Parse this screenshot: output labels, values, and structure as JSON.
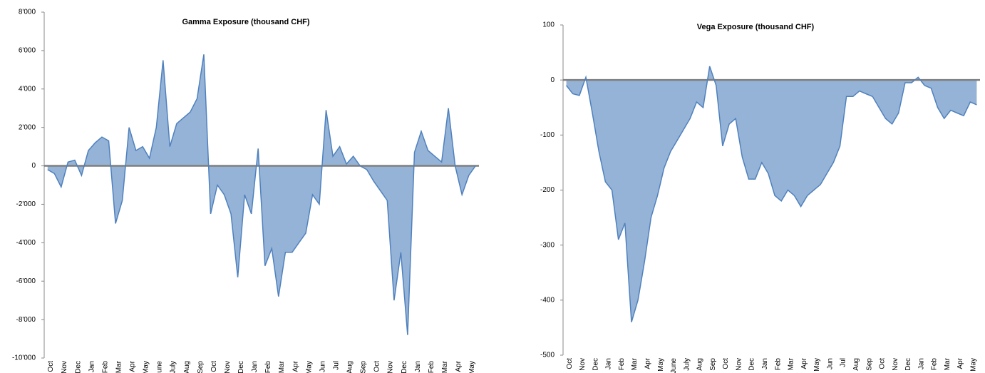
{
  "chart_data": [
    {
      "type": "area",
      "title": "Gamma Exposure  (thousand CHF)",
      "categories": [
        "Oct",
        null,
        "Nov",
        null,
        "Dec",
        null,
        "Jan",
        null,
        "Feb",
        null,
        "Mar",
        null,
        "Apr",
        null,
        "May",
        null,
        "June",
        null,
        "July",
        null,
        "Aug",
        null,
        "Sep",
        null,
        "Oct",
        null,
        "Nov",
        null,
        "Dec",
        null,
        "Jan",
        null,
        "Feb",
        null,
        "Mar",
        null,
        "Apr",
        null,
        "May",
        null,
        "Jun",
        null,
        "Jul",
        null,
        "Aug",
        null,
        "Sep",
        null,
        "Oct",
        null,
        "Nov",
        null,
        "Dec",
        null,
        "Jan",
        null,
        "Feb",
        null,
        "Mar",
        null,
        "Apr",
        null,
        "May",
        null
      ],
      "values": [
        -200,
        -400,
        -1100,
        200,
        300,
        -500,
        800,
        1200,
        1500,
        1300,
        -3000,
        -1800,
        2000,
        800,
        1000,
        400,
        2000,
        5500,
        1000,
        2200,
        2500,
        2800,
        3500,
        5800,
        -2500,
        -1000,
        -1500,
        -2500,
        -5800,
        -1500,
        -2500,
        900,
        -5200,
        -4300,
        -6800,
        -4500,
        -4500,
        -4000,
        -3500,
        -1500,
        -2000,
        2900,
        500,
        1000,
        100,
        500,
        0,
        -200,
        -800,
        -1300,
        -1800,
        -7000,
        -4500,
        -8800,
        700,
        1800,
        800,
        500,
        200,
        3000,
        0,
        -1500,
        -500,
        0
      ],
      "color": "#4f81bd",
      "ylim": [
        -10000,
        8000
      ],
      "yticks": [
        {
          "value": -10000,
          "label": "-10'000"
        },
        {
          "value": -8000,
          "label": "-8'000"
        },
        {
          "value": -6000,
          "label": "-6'000"
        },
        {
          "value": -4000,
          "label": "-4'000"
        },
        {
          "value": -2000,
          "label": "-2'000"
        },
        0,
        {
          "value": 2000,
          "label": "2'000"
        },
        {
          "value": 4000,
          "label": "4'000"
        },
        {
          "value": 6000,
          "label": "6'000"
        },
        {
          "value": 8000,
          "label": "8'000"
        }
      ]
    },
    {
      "type": "area",
      "title": "Vega Exposure (thousand CHF)",
      "categories": [
        "Oct",
        null,
        "Nov",
        null,
        "Dec",
        null,
        "Jan",
        null,
        "Feb",
        null,
        "Mar",
        null,
        "Apr",
        null,
        "May",
        null,
        "June",
        null,
        "July",
        null,
        "Aug",
        null,
        "Sep",
        null,
        "Oct",
        null,
        "Nov",
        null,
        "Dec",
        null,
        "Jan",
        null,
        "Feb",
        null,
        "Mar",
        null,
        "Apr",
        null,
        "May",
        null,
        "Jun",
        null,
        "Jul",
        null,
        "Aug",
        null,
        "Sep",
        null,
        "Oct",
        null,
        "Nov",
        null,
        "Dec",
        null,
        "Jan",
        null,
        "Feb",
        null,
        "Mar",
        null,
        "Apr",
        null,
        "May",
        null
      ],
      "values": [
        -10,
        -25,
        -28,
        5,
        -60,
        -130,
        -185,
        -200,
        -290,
        -260,
        -440,
        -400,
        -330,
        -250,
        -210,
        -160,
        -130,
        -110,
        -90,
        -70,
        -40,
        -50,
        25,
        -10,
        -120,
        -80,
        -70,
        -140,
        -180,
        -180,
        -150,
        -170,
        -210,
        -220,
        -200,
        -210,
        -230,
        -210,
        -200,
        -190,
        -170,
        -150,
        -120,
        -30,
        -30,
        -20,
        -25,
        -30,
        -50,
        -70,
        -80,
        -60,
        -5,
        -5,
        5,
        -10,
        -15,
        -50,
        -70,
        -55,
        -60,
        -65,
        -40,
        -45
      ],
      "color": "#4f81bd",
      "ylim": [
        -500,
        100
      ],
      "yticks": [
        -500,
        -400,
        -300,
        -200,
        -100,
        0,
        100
      ]
    }
  ]
}
